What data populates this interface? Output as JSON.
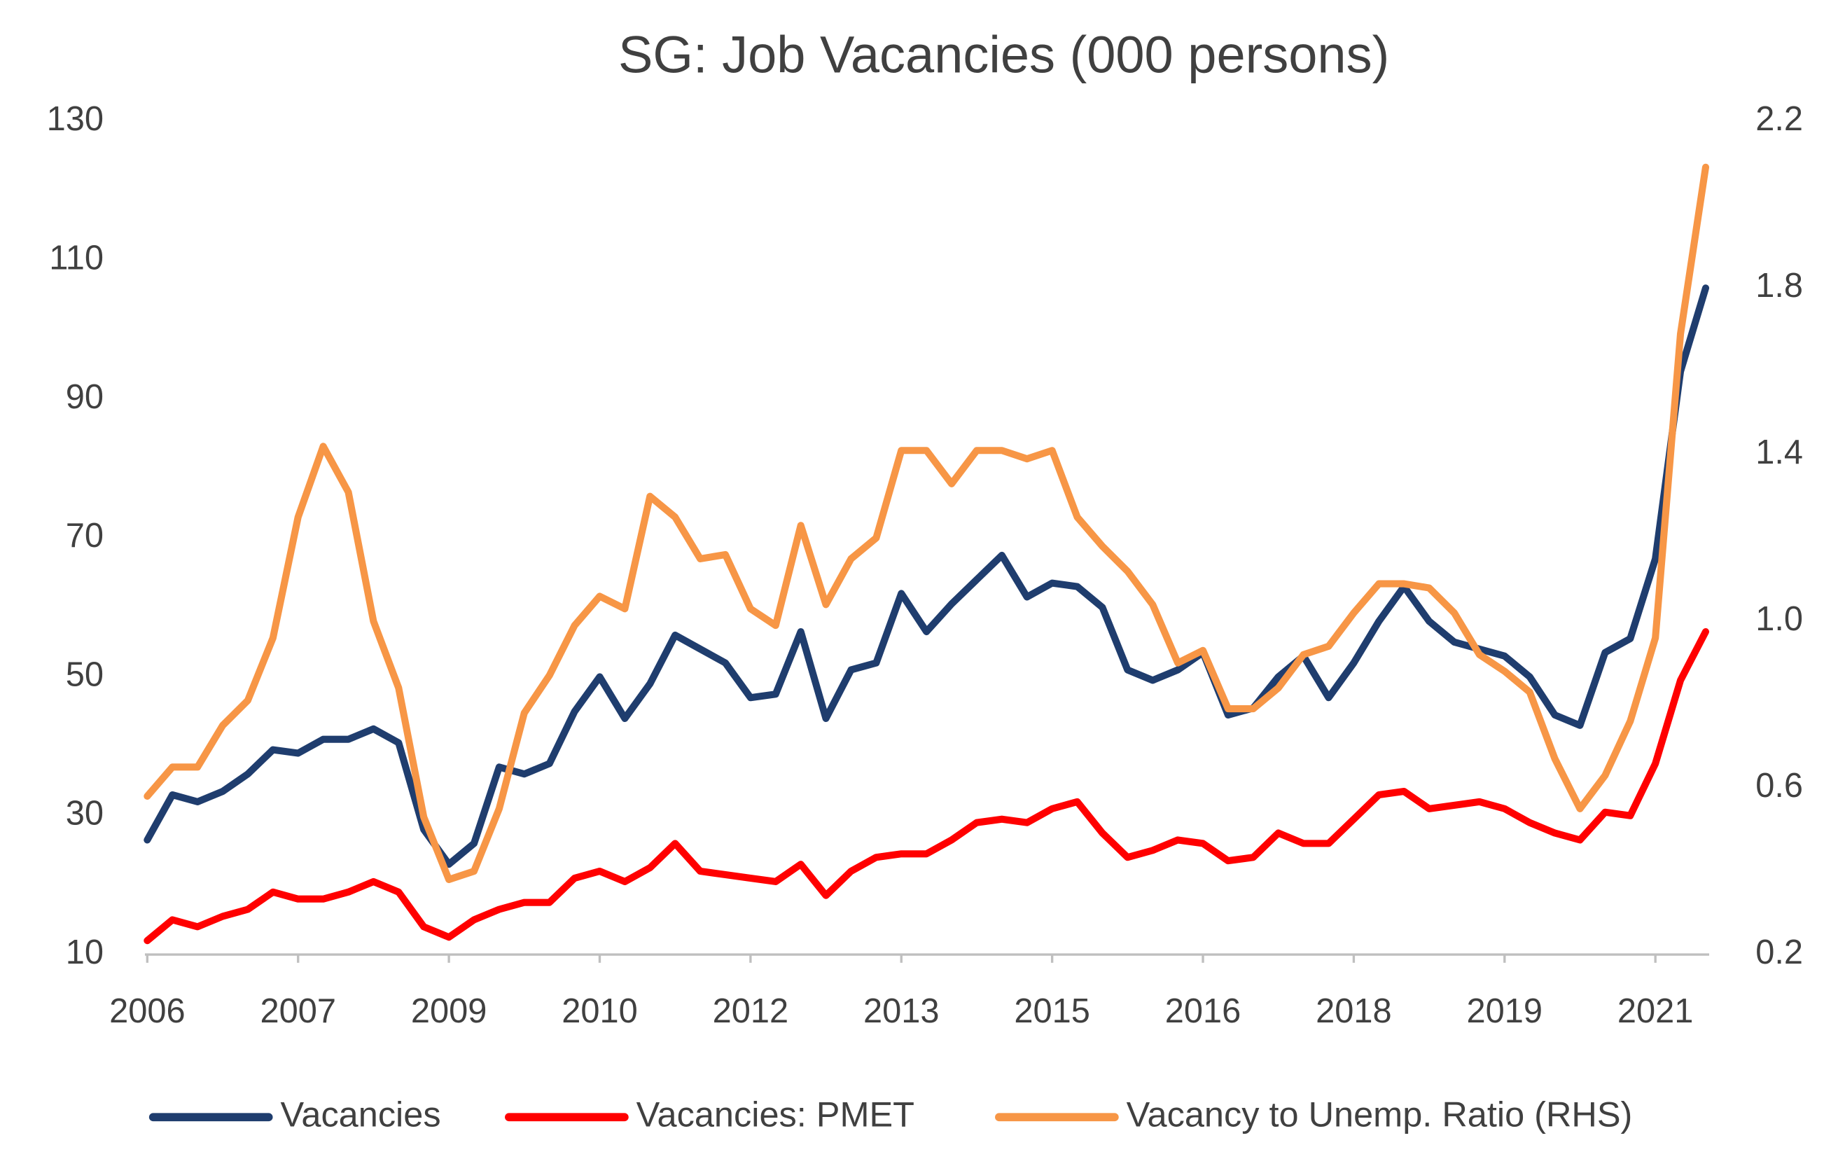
{
  "chart_data": {
    "type": "line",
    "title": "SG: Job Vacancies (000 persons)",
    "categories": [
      "2006",
      null,
      null,
      null,
      null,
      null,
      "2007",
      null,
      null,
      null,
      null,
      null,
      "2009",
      null,
      null,
      null,
      null,
      null,
      "2010",
      null,
      null,
      null,
      null,
      null,
      "2012",
      null,
      null,
      null,
      null,
      null,
      "2013",
      null,
      null,
      null,
      null,
      null,
      "2015",
      null,
      null,
      null,
      null,
      null,
      "2016",
      null,
      null,
      null,
      null,
      null,
      "2018",
      null,
      null,
      null,
      null,
      null,
      "2019",
      null,
      null,
      null,
      null,
      null,
      "2021",
      null,
      null
    ],
    "ylim": [
      10,
      130
    ],
    "yticks": [
      10,
      30,
      50,
      70,
      90,
      110,
      130
    ],
    "y2lim": [
      0.2,
      2.2
    ],
    "y2ticks": [
      0.2,
      0.6,
      {
        "value": 1,
        "label": "1.0"
      },
      1.4,
      1.8,
      2.2
    ],
    "legend": "bottom",
    "series": [
      {
        "name": "Vacancies",
        "color": "#1f3d6e",
        "values": [
          26.5,
          33,
          32,
          33.5,
          36,
          39.5,
          39,
          41,
          41,
          42.5,
          40.5,
          28,
          23,
          26,
          37,
          36,
          37.5,
          45,
          50,
          44,
          49,
          56,
          54,
          52,
          47,
          47.5,
          56.5,
          44,
          51,
          52,
          62,
          56.5,
          60.5,
          64,
          67.5,
          61.5,
          63.5,
          63,
          60,
          51,
          49.5,
          51,
          53.5,
          44.5,
          45.5,
          50,
          53,
          47,
          52,
          58,
          63,
          58,
          55,
          54,
          53,
          50,
          44.5,
          43,
          53.5,
          55.5,
          67,
          94,
          106
        ]
      },
      {
        "name": "Vacancies: PMET",
        "color": "#ff0000",
        "values": [
          12,
          15,
          14,
          15.5,
          16.5,
          19,
          18,
          18,
          19,
          20.5,
          19,
          14,
          12.5,
          15,
          16.5,
          17.5,
          17.5,
          21,
          22,
          20.5,
          22.5,
          26,
          22,
          21.5,
          21,
          20.5,
          23,
          18.5,
          22,
          24,
          24.5,
          24.5,
          26.5,
          29,
          29.5,
          29,
          31,
          32,
          27.5,
          24,
          25,
          26.5,
          26,
          23.5,
          24,
          27.5,
          26,
          26,
          29.5,
          33,
          33.5,
          31,
          31.5,
          32,
          31,
          29,
          27.5,
          26.5,
          30.5,
          30,
          37.5,
          49.5,
          56.5
        ]
      },
      {
        "name": "Vacancy to Unemp. Ratio (RHS)",
        "color": "#f79646",
        "axis": "y2",
        "values": [
          0.58,
          0.65,
          0.65,
          0.75,
          0.81,
          0.96,
          1.25,
          1.42,
          1.31,
          1.0,
          0.84,
          0.53,
          0.38,
          0.4,
          0.55,
          0.78,
          0.87,
          0.99,
          1.06,
          1.03,
          1.3,
          1.25,
          1.15,
          1.16,
          1.03,
          0.99,
          1.23,
          1.04,
          1.15,
          1.2,
          1.41,
          1.41,
          1.33,
          1.41,
          1.41,
          1.39,
          1.41,
          1.25,
          1.18,
          1.12,
          1.04,
          0.9,
          0.93,
          0.79,
          0.79,
          0.84,
          0.92,
          0.94,
          1.02,
          1.09,
          1.09,
          1.08,
          1.02,
          0.92,
          0.88,
          0.83,
          0.67,
          0.55,
          0.63,
          0.76,
          0.96,
          1.69,
          2.09
        ]
      }
    ]
  }
}
